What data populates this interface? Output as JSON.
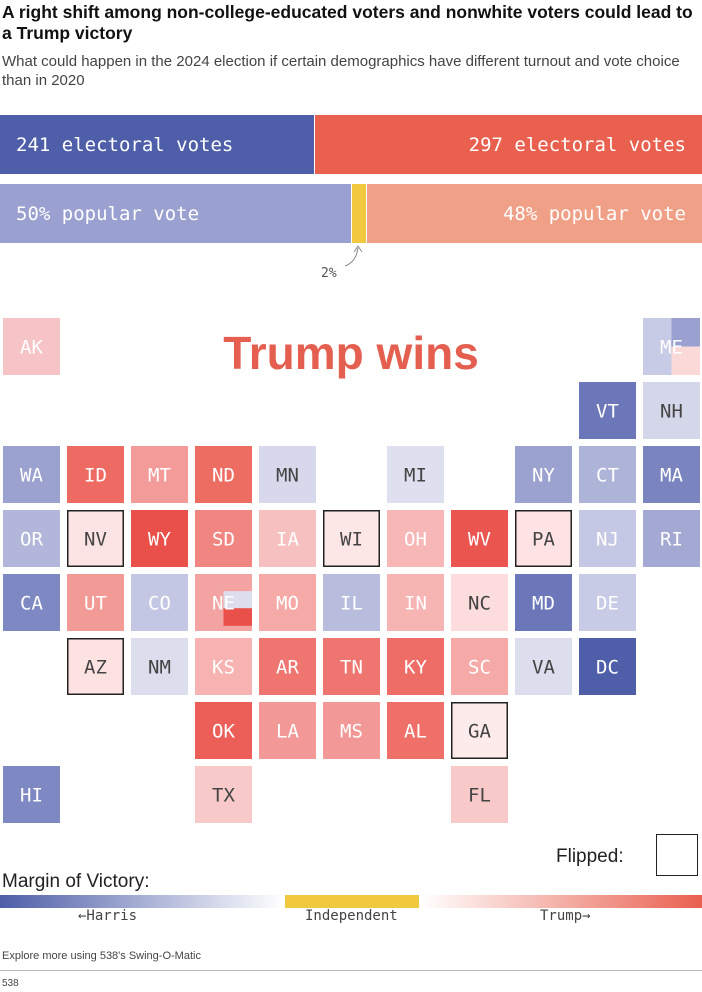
{
  "header": {
    "title": "A right shift among non-college-educated voters and nonwhite voters could lead to a Trump victory",
    "subtitle": "What could happen in the 2024 election if certain demographics have different turnout and vote choice than in 2020"
  },
  "chart_data": [
    {
      "type": "bar",
      "title": "",
      "series": [
        {
          "name": "Harris",
          "label": "241 electoral votes",
          "value": 241,
          "color": "#4e5ea8"
        },
        {
          "name": "Trump",
          "label": "297 electoral votes",
          "value": 297,
          "color": "#e9604f"
        }
      ],
      "total": 538
    },
    {
      "type": "bar",
      "title": "",
      "series": [
        {
          "name": "Harris",
          "label": "50% popular vote",
          "value": 50,
          "color": "#9aa0cf"
        },
        {
          "name": "Independent",
          "label": "2%",
          "value": 2,
          "color": "#f0c93e"
        },
        {
          "name": "Trump",
          "label": "48% popular vote",
          "value": 48,
          "color": "#f1a088"
        }
      ]
    },
    {
      "type": "heatmap",
      "title": "Trump wins",
      "states": [
        {
          "abbr": "AK",
          "col": 0,
          "row": 0,
          "color": "#f6c3c6",
          "flipped": false
        },
        {
          "abbr": "ME",
          "col": 10,
          "row": 0,
          "color": "#c8cbe5",
          "flipped": false,
          "split": true
        },
        {
          "abbr": "VT",
          "col": 9,
          "row": 1,
          "color": "#6b77b9",
          "flipped": false
        },
        {
          "abbr": "NH",
          "col": 10,
          "row": 1,
          "color": "#d4d6ea",
          "flipped": false
        },
        {
          "abbr": "WA",
          "col": 0,
          "row": 2,
          "color": "#9ca2cf",
          "flipped": false
        },
        {
          "abbr": "ID",
          "col": 1,
          "row": 2,
          "color": "#ee6b63",
          "flipped": false
        },
        {
          "abbr": "MT",
          "col": 2,
          "row": 2,
          "color": "#f29b98",
          "flipped": false
        },
        {
          "abbr": "ND",
          "col": 3,
          "row": 2,
          "color": "#ee6d63",
          "flipped": false
        },
        {
          "abbr": "MN",
          "col": 4,
          "row": 2,
          "color": "#d7d8eb",
          "flipped": false
        },
        {
          "abbr": "MI",
          "col": 6,
          "row": 2,
          "color": "#dfe0ef",
          "flipped": false
        },
        {
          "abbr": "NY",
          "col": 8,
          "row": 2,
          "color": "#9ca2cf",
          "flipped": false
        },
        {
          "abbr": "CT",
          "col": 9,
          "row": 2,
          "color": "#aeb3d8",
          "flipped": false
        },
        {
          "abbr": "MA",
          "col": 10,
          "row": 2,
          "color": "#7a85c0",
          "flipped": false
        },
        {
          "abbr": "OR",
          "col": 0,
          "row": 3,
          "color": "#b2b6da",
          "flipped": false
        },
        {
          "abbr": "NV",
          "col": 1,
          "row": 3,
          "color": "#fde4e4",
          "flipped": true
        },
        {
          "abbr": "WY",
          "col": 2,
          "row": 3,
          "color": "#e9504a",
          "flipped": false
        },
        {
          "abbr": "SD",
          "col": 3,
          "row": 3,
          "color": "#f18582",
          "flipped": false
        },
        {
          "abbr": "IA",
          "col": 4,
          "row": 3,
          "color": "#f7c0c0",
          "flipped": false
        },
        {
          "abbr": "WI",
          "col": 5,
          "row": 3,
          "color": "#fde6e6",
          "flipped": true
        },
        {
          "abbr": "OH",
          "col": 6,
          "row": 3,
          "color": "#f7b7b6",
          "flipped": false
        },
        {
          "abbr": "WV",
          "col": 7,
          "row": 3,
          "color": "#ea5550",
          "flipped": false
        },
        {
          "abbr": "PA",
          "col": 8,
          "row": 3,
          "color": "#fde3e3",
          "flipped": true
        },
        {
          "abbr": "NJ",
          "col": 9,
          "row": 3,
          "color": "#c5c8e4",
          "flipped": false
        },
        {
          "abbr": "RI",
          "col": 10,
          "row": 3,
          "color": "#a3a9d3",
          "flipped": false
        },
        {
          "abbr": "CA",
          "col": 0,
          "row": 4,
          "color": "#7e88c2",
          "flipped": false
        },
        {
          "abbr": "UT",
          "col": 1,
          "row": 4,
          "color": "#f29a96",
          "flipped": false
        },
        {
          "abbr": "CO",
          "col": 2,
          "row": 4,
          "color": "#c4c7e3",
          "flipped": false
        },
        {
          "abbr": "NE",
          "col": 3,
          "row": 4,
          "color": "#f3a3a1",
          "flipped": false,
          "split": true
        },
        {
          "abbr": "MO",
          "col": 4,
          "row": 4,
          "color": "#f5aaa8",
          "flipped": false
        },
        {
          "abbr": "IL",
          "col": 5,
          "row": 4,
          "color": "#b9bddd",
          "flipped": false
        },
        {
          "abbr": "IN",
          "col": 6,
          "row": 4,
          "color": "#f6b4b2",
          "flipped": false
        },
        {
          "abbr": "NC",
          "col": 7,
          "row": 4,
          "color": "#fcdcdc",
          "flipped": false
        },
        {
          "abbr": "MD",
          "col": 8,
          "row": 4,
          "color": "#6b77b9",
          "flipped": false
        },
        {
          "abbr": "DE",
          "col": 9,
          "row": 4,
          "color": "#c8cbe5",
          "flipped": false
        },
        {
          "abbr": "AZ",
          "col": 1,
          "row": 5,
          "color": "#fde2e2",
          "flipped": true
        },
        {
          "abbr": "NM",
          "col": 2,
          "row": 5,
          "color": "#dcdded",
          "flipped": false
        },
        {
          "abbr": "KS",
          "col": 3,
          "row": 5,
          "color": "#f6b3b1",
          "flipped": false
        },
        {
          "abbr": "AR",
          "col": 4,
          "row": 5,
          "color": "#ef7570",
          "flipped": false
        },
        {
          "abbr": "TN",
          "col": 5,
          "row": 5,
          "color": "#ef7570",
          "flipped": false
        },
        {
          "abbr": "KY",
          "col": 6,
          "row": 5,
          "color": "#ee6d66",
          "flipped": false
        },
        {
          "abbr": "SC",
          "col": 7,
          "row": 5,
          "color": "#f5aaa8",
          "flipped": false
        },
        {
          "abbr": "VA",
          "col": 8,
          "row": 5,
          "color": "#dcdded",
          "flipped": false
        },
        {
          "abbr": "DC",
          "col": 9,
          "row": 5,
          "color": "#4e5ea8",
          "flipped": false
        },
        {
          "abbr": "OK",
          "col": 3,
          "row": 6,
          "color": "#ec5f58",
          "flipped": false
        },
        {
          "abbr": "LA",
          "col": 4,
          "row": 6,
          "color": "#f29896",
          "flipped": false
        },
        {
          "abbr": "MS",
          "col": 5,
          "row": 6,
          "color": "#f29896",
          "flipped": false
        },
        {
          "abbr": "AL",
          "col": 6,
          "row": 6,
          "color": "#ee7069",
          "flipped": false
        },
        {
          "abbr": "GA",
          "col": 7,
          "row": 6,
          "color": "#fdeaea",
          "flipped": true
        },
        {
          "abbr": "HI",
          "col": 0,
          "row": 7,
          "color": "#7e88c2",
          "flipped": false
        },
        {
          "abbr": "TX",
          "col": 3,
          "row": 7,
          "color": "#f8c9c9",
          "flipped": false
        },
        {
          "abbr": "FL",
          "col": 7,
          "row": 7,
          "color": "#f8c9c9",
          "flipped": false
        }
      ]
    }
  ],
  "legend": {
    "flipped_label": "Flipped:",
    "title": "Margin of Victory:",
    "harris_label": "←Harris",
    "independent_label": "Independent",
    "trump_label": "Trump→"
  },
  "footer": {
    "note": "Explore more using 538's Swing-O-Matic",
    "source": "538"
  }
}
